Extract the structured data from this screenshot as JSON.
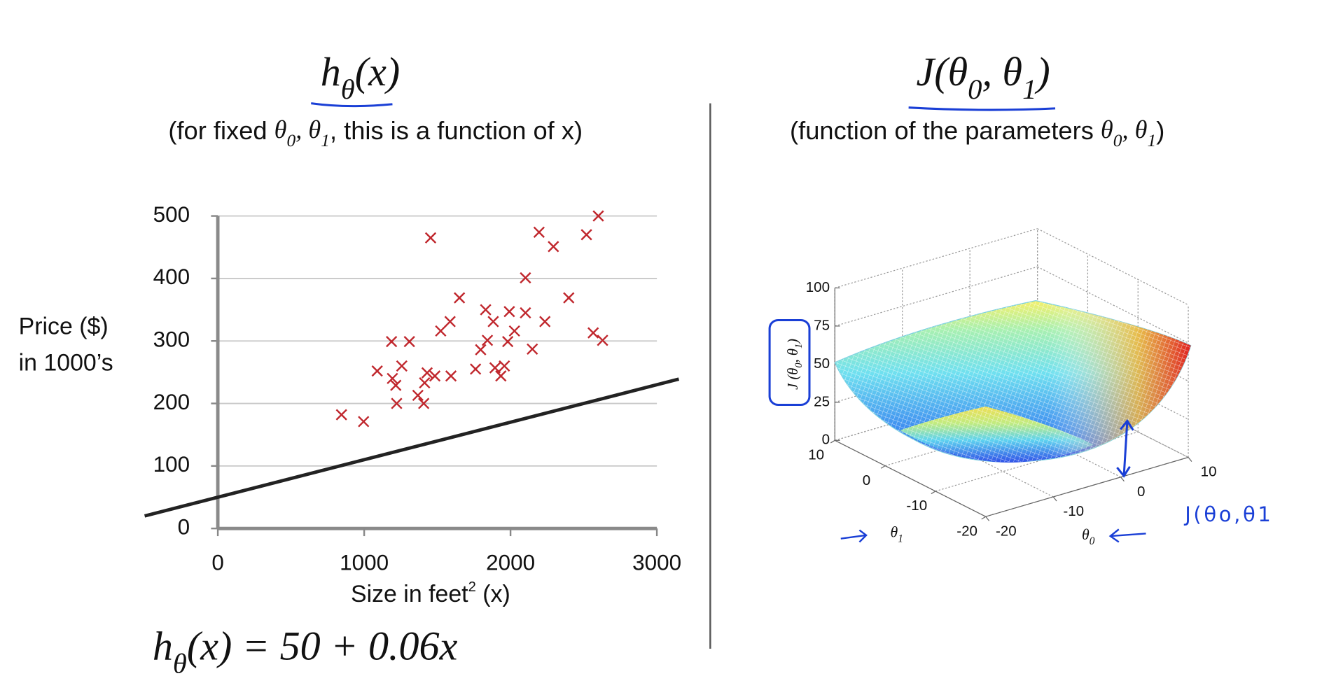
{
  "chart_data": [
    {
      "type": "scatter",
      "title": [
        {
          "text": "h",
          "math": true
        },
        {
          "text": "θ",
          "math": true,
          "sub": true
        },
        {
          "text": "(x)",
          "math": true
        }
      ],
      "subtitle": [
        {
          "text": "(for fixed "
        },
        {
          "text": "θ",
          "math": true
        },
        {
          "text": "0",
          "math": true,
          "sub": true
        },
        {
          "text": ", ",
          "math": true
        },
        {
          "text": "θ",
          "math": true
        },
        {
          "text": "1",
          "math": true,
          "sub": true
        },
        {
          "text": ", this is a function of x)"
        }
      ],
      "y_label": [
        "Price ($)",
        "in 1000’s"
      ],
      "x_label": [
        {
          "text": "Size in feet"
        },
        {
          "text": "2",
          "sup": true
        },
        {
          "text": " (x)"
        }
      ],
      "x": [
        845,
        996,
        1089,
        1187,
        1193,
        1216,
        1222,
        1257,
        1309,
        1367,
        1407,
        1413,
        1430,
        1454,
        1483,
        1523,
        1587,
        1593,
        1651,
        1761,
        1796,
        1830,
        1842,
        1882,
        1894,
        1934,
        1958,
        1981,
        1992,
        2027,
        2102,
        2149,
        2102,
        2195,
        2235,
        2293,
        2398,
        2519,
        2565,
        2600,
        2629
      ],
      "values": [
        182,
        171,
        252,
        299,
        240,
        229,
        200,
        260,
        299,
        213,
        200,
        233,
        249,
        465,
        244,
        316,
        331,
        244,
        369,
        255,
        286,
        350,
        301,
        331,
        257,
        244,
        260,
        299,
        347,
        316,
        345,
        287,
        401,
        474,
        331,
        451,
        369,
        470,
        313,
        500,
        301
      ],
      "color": "#c0272d",
      "line": {
        "x": [
          -500,
          3150
        ],
        "values": [
          20,
          239
        ],
        "color": "#222222"
      },
      "xlim": [
        0,
        3000
      ],
      "ylim": [
        0,
        500
      ],
      "xticks": [
        0,
        1000,
        2000,
        3000
      ],
      "yticks": [
        0,
        100,
        200,
        300,
        400,
        500
      ],
      "grid": true,
      "equation": [
        {
          "text": "h",
          "math": true
        },
        {
          "text": "θ",
          "math": true,
          "sub": true
        },
        {
          "text": "(x) = 50 + 0.06x",
          "math": true
        }
      ]
    },
    {
      "type": "surface",
      "title": [
        {
          "text": "J(θ",
          "math": true
        },
        {
          "text": "0",
          "math": true,
          "sub": true
        },
        {
          "text": ", θ",
          "math": true
        },
        {
          "text": "1",
          "math": true,
          "sub": true
        },
        {
          "text": ")",
          "math": true
        }
      ],
      "subtitle": [
        {
          "text": "(function of the parameters "
        },
        {
          "text": "θ",
          "math": true
        },
        {
          "text": "0",
          "math": true,
          "sub": true
        },
        {
          "text": ", ",
          "math": true
        },
        {
          "text": "θ",
          "math": true
        },
        {
          "text": "1",
          "math": true,
          "sub": true
        },
        {
          "text": ")"
        }
      ],
      "x_label": [
        {
          "text": "θ",
          "math": true
        },
        {
          "text": "0",
          "math": true,
          "sub": true
        }
      ],
      "y_label": [
        {
          "text": "θ",
          "math": true
        },
        {
          "text": "1",
          "math": true,
          "sub": true
        }
      ],
      "z_label": [
        {
          "text": "J (θ",
          "math": true
        },
        {
          "text": "0",
          "math": true,
          "sub": true
        },
        {
          "text": ", θ",
          "math": true
        },
        {
          "text": "1",
          "math": true,
          "sub": true
        },
        {
          "text": ")",
          "math": true
        }
      ],
      "xlim": [
        -20,
        10
      ],
      "ylim": [
        -20,
        10
      ],
      "zlim": [
        0,
        100
      ],
      "xticks": [
        -20,
        -10,
        0,
        10
      ],
      "yticks": [
        -20,
        -10,
        0,
        10
      ],
      "zticks": [
        0,
        25,
        50,
        75,
        100
      ],
      "annotation": "J(θo,θ1"
    }
  ]
}
